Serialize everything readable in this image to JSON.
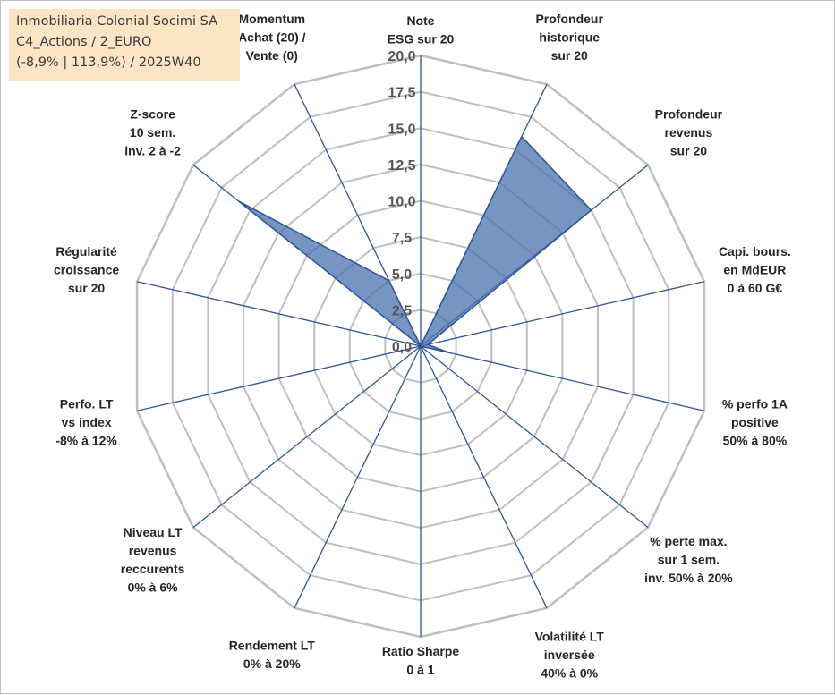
{
  "info": {
    "line1": "Inmobiliaria Colonial Socimi SA",
    "line2": "C4_Actions / 2_EURO",
    "line3": "(-8,9% | 113,9%) / 2025W40"
  },
  "colors": {
    "grid": "#bfbfbf",
    "spoke": "#2f5597",
    "fill": "#4a72ad",
    "fill_opacity": 0.75,
    "info_bg": "#fbe5c4"
  },
  "chart_data": {
    "type": "radar",
    "title": "",
    "rmin": 0,
    "rmax": 20,
    "ticks": [
      "0,0",
      "2,5",
      "5,0",
      "7,5",
      "10,0",
      "12,5",
      "15,0",
      "17,5",
      "20,0"
    ],
    "axes": [
      [
        "Note",
        "ESG sur 20"
      ],
      [
        "Profondeur",
        "historique",
        "sur 20"
      ],
      [
        "Profondeur",
        "revenus",
        "sur 20"
      ],
      [
        "Capi. bours.",
        "en MdEUR",
        "0 à 60 G€"
      ],
      [
        "% perfo 1A",
        "positive",
        "50% à 80%"
      ],
      [
        "% perte max.",
        "sur 1 sem.",
        "inv. 50% à 20%"
      ],
      [
        "Volatilité LT",
        "inversée",
        "40% à 0%"
      ],
      [
        "Ratio Sharpe",
        "0 à 1"
      ],
      [
        "Rendement LT",
        "0% à 20%"
      ],
      [
        "Niveau LT",
        "revenus",
        "reccurents",
        "0% à 6%"
      ],
      [
        "Perfo. LT",
        "vs index",
        "-8% à 12%"
      ],
      [
        "Régularité",
        "croissance",
        "sur 20"
      ],
      [
        "Z-score",
        "10 sem.",
        "inv. 2 à -2"
      ],
      [
        "Momentum",
        "Achat (20) /",
        "Vente (0)"
      ]
    ],
    "series": [
      {
        "values": [
          0,
          16,
          15,
          0.5,
          2,
          0,
          0,
          0,
          0,
          0,
          0,
          0,
          16,
          5
        ]
      }
    ],
    "grid": true
  }
}
